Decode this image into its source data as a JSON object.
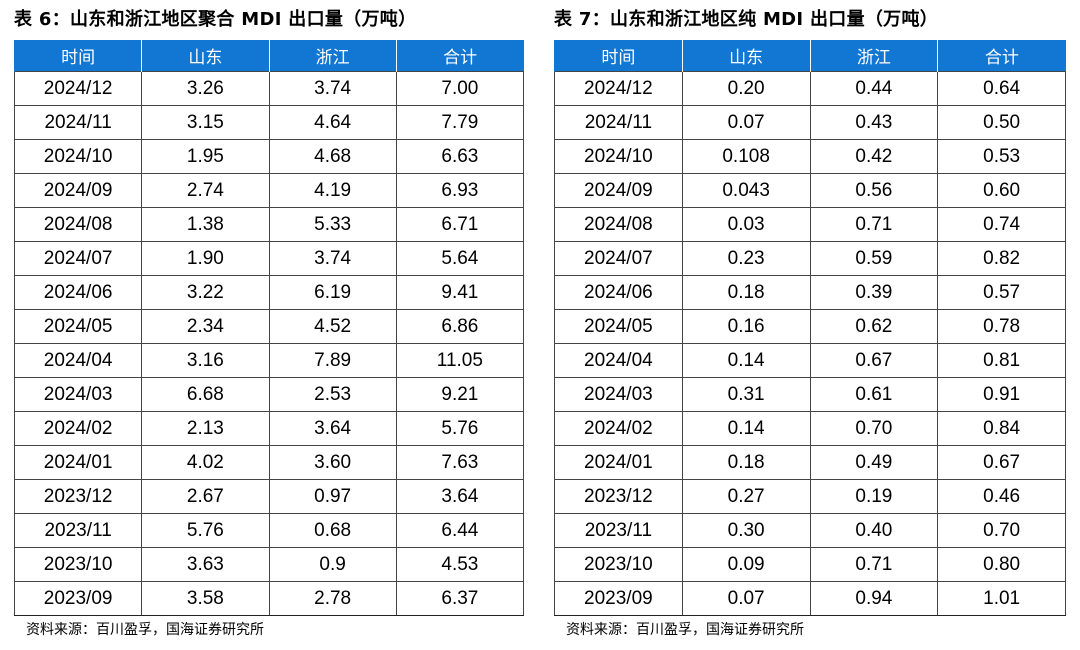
{
  "left_table": {
    "title": "表 6：山东和浙江地区聚合 MDI 出口量（万吨）",
    "headers": [
      "时间",
      "山东",
      "浙江",
      "合计"
    ],
    "rows": [
      [
        "2024/12",
        "3.26",
        "3.74",
        "7.00"
      ],
      [
        "2024/11",
        "3.15",
        "4.64",
        "7.79"
      ],
      [
        "2024/10",
        "1.95",
        "4.68",
        "6.63"
      ],
      [
        "2024/09",
        "2.74",
        "4.19",
        "6.93"
      ],
      [
        "2024/08",
        "1.38",
        "5.33",
        "6.71"
      ],
      [
        "2024/07",
        "1.90",
        "3.74",
        "5.64"
      ],
      [
        "2024/06",
        "3.22",
        "6.19",
        "9.41"
      ],
      [
        "2024/05",
        "2.34",
        "4.52",
        "6.86"
      ],
      [
        "2024/04",
        "3.16",
        "7.89",
        "11.05"
      ],
      [
        "2024/03",
        "6.68",
        "2.53",
        "9.21"
      ],
      [
        "2024/02",
        "2.13",
        "3.64",
        "5.76"
      ],
      [
        "2024/01",
        "4.02",
        "3.60",
        "7.63"
      ],
      [
        "2023/12",
        "2.67",
        "0.97",
        "3.64"
      ],
      [
        "2023/11",
        "5.76",
        "0.68",
        "6.44"
      ],
      [
        "2023/10",
        "3.63",
        "0.9",
        "4.53"
      ],
      [
        "2023/09",
        "3.58",
        "2.78",
        "6.37"
      ]
    ],
    "source": "资料来源：百川盈孚，国海证券研究所"
  },
  "right_table": {
    "title": "表 7：山东和浙江地区纯 MDI 出口量（万吨）",
    "headers": [
      "时间",
      "山东",
      "浙江",
      "合计"
    ],
    "rows": [
      [
        "2024/12",
        "0.20",
        "0.44",
        "0.64"
      ],
      [
        "2024/11",
        "0.07",
        "0.43",
        "0.50"
      ],
      [
        "2024/10",
        "0.108",
        "0.42",
        "0.53"
      ],
      [
        "2024/09",
        "0.043",
        "0.56",
        "0.60"
      ],
      [
        "2024/08",
        "0.03",
        "0.71",
        "0.74"
      ],
      [
        "2024/07",
        "0.23",
        "0.59",
        "0.82"
      ],
      [
        "2024/06",
        "0.18",
        "0.39",
        "0.57"
      ],
      [
        "2024/05",
        "0.16",
        "0.62",
        "0.78"
      ],
      [
        "2024/04",
        "0.14",
        "0.67",
        "0.81"
      ],
      [
        "2024/03",
        "0.31",
        "0.61",
        "0.91"
      ],
      [
        "2024/02",
        "0.14",
        "0.70",
        "0.84"
      ],
      [
        "2024/01",
        "0.18",
        "0.49",
        "0.67"
      ],
      [
        "2023/12",
        "0.27",
        "0.19",
        "0.46"
      ],
      [
        "2023/11",
        "0.30",
        "0.40",
        "0.70"
      ],
      [
        "2023/10",
        "0.09",
        "0.71",
        "0.80"
      ],
      [
        "2023/09",
        "0.07",
        "0.94",
        "1.01"
      ]
    ],
    "source": "资料来源：百川盈孚，国海证券研究所"
  },
  "colors": {
    "header_bg": "#1177d3",
    "header_text": "#ffffff"
  }
}
